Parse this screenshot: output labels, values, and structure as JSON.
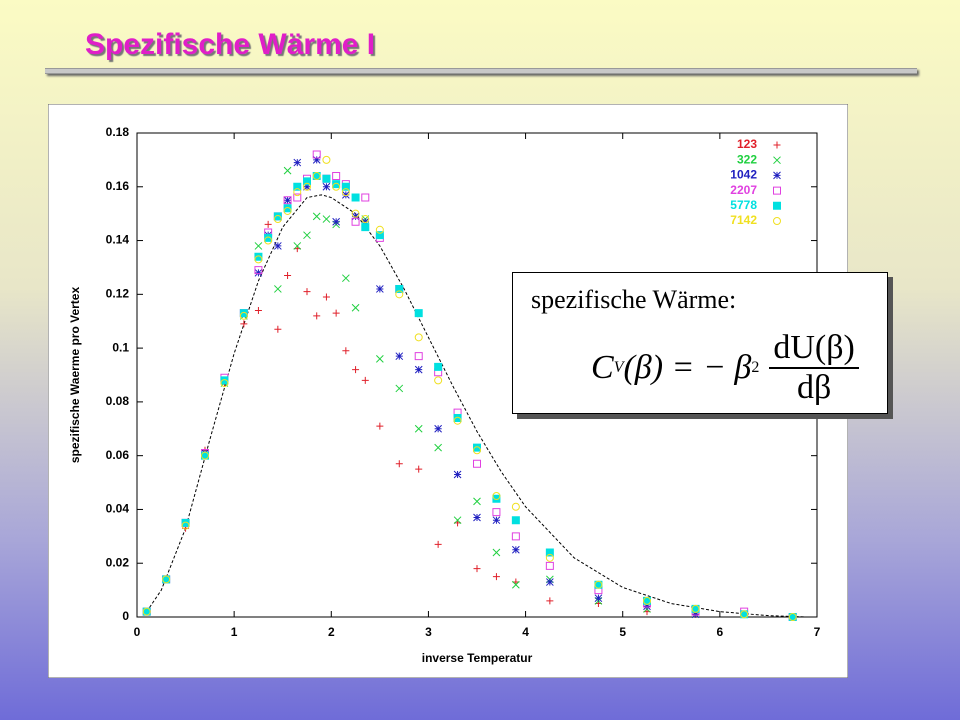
{
  "slide": {
    "title": "Spezifische Wärme I",
    "textbox": {
      "label": "spezifische Wärme:",
      "formula": {
        "lhs": "C",
        "lhs_sub": "V",
        "lhs_arg": "(β) = − β",
        "power": "2",
        "numerator": "dU(β)",
        "denominator": "dβ"
      }
    }
  },
  "chart_data": {
    "type": "scatter",
    "x_label": "inverse Temperatur",
    "y_label": "spezifische Waerme pro Vertex",
    "xlim": [
      0,
      7
    ],
    "xticks": [
      0,
      1,
      2,
      3,
      4,
      5,
      6,
      7
    ],
    "ylim": [
      0,
      0.18
    ],
    "yticks": [
      0,
      0.02,
      0.04,
      0.06,
      0.08,
      0.1,
      0.12,
      0.14,
      0.16,
      0.18
    ],
    "legend": "top-right",
    "x": [
      0.1,
      0.3,
      0.5,
      0.7,
      0.9,
      1.1,
      1.25,
      1.35,
      1.45,
      1.55,
      1.65,
      1.75,
      1.85,
      1.95,
      2.05,
      2.15,
      2.25,
      2.35,
      2.5,
      2.7,
      2.9,
      3.1,
      3.3,
      3.5,
      3.7,
      3.9,
      4.25,
      4.75,
      5.25,
      5.75,
      6.25,
      6.75
    ],
    "series": [
      {
        "name": "123",
        "color": "#e0202a",
        "marker": "plus",
        "values": [
          0.002,
          0.014,
          0.033,
          0.062,
          0.087,
          0.109,
          0.114,
          0.146,
          0.107,
          0.127,
          0.137,
          0.121,
          0.112,
          0.119,
          0.113,
          0.099,
          0.092,
          0.088,
          0.071,
          0.057,
          0.055,
          0.027,
          0.035,
          0.018,
          0.015,
          0.013,
          0.006,
          0.005,
          0.002,
          0.001,
          0.001,
          0
        ]
      },
      {
        "name": "322",
        "color": "#20d040",
        "marker": "cross",
        "values": [
          0.002,
          0.014,
          0.035,
          0.061,
          0.087,
          0.112,
          0.138,
          0.141,
          0.122,
          0.166,
          0.138,
          0.142,
          0.149,
          0.148,
          0.146,
          0.126,
          0.115,
          0.148,
          0.096,
          0.085,
          0.07,
          0.063,
          0.036,
          0.043,
          0.024,
          0.012,
          0.014,
          0.006,
          0.003,
          0.001,
          0.001,
          0
        ]
      },
      {
        "name": "1042",
        "color": "#2020c0",
        "marker": "star",
        "values": [
          0.002,
          0.014,
          0.035,
          0.061,
          0.088,
          0.113,
          0.128,
          0.142,
          0.138,
          0.155,
          0.169,
          0.16,
          0.17,
          0.16,
          0.147,
          0.157,
          0.149,
          0.147,
          0.122,
          0.097,
          0.092,
          0.07,
          0.053,
          0.037,
          0.036,
          0.025,
          0.013,
          0.007,
          0.004,
          0.001,
          0.001,
          0
        ]
      },
      {
        "name": "2207",
        "color": "#e040e0",
        "marker": "square-open",
        "values": [
          0.002,
          0.014,
          0.035,
          0.061,
          0.089,
          0.113,
          0.129,
          0.143,
          0.149,
          0.155,
          0.156,
          0.163,
          0.172,
          0.163,
          0.164,
          0.161,
          0.147,
          0.156,
          0.141,
          0.122,
          0.097,
          0.091,
          0.076,
          0.057,
          0.039,
          0.03,
          0.019,
          0.01,
          0.005,
          0.002,
          0.002,
          0
        ]
      },
      {
        "name": "5778",
        "color": "#00e0e0",
        "marker": "square",
        "values": [
          0.002,
          0.014,
          0.035,
          0.06,
          0.088,
          0.113,
          0.134,
          0.141,
          0.149,
          0.152,
          0.16,
          0.162,
          0.164,
          0.163,
          0.161,
          0.16,
          0.156,
          0.145,
          0.142,
          0.122,
          0.113,
          0.093,
          0.074,
          0.063,
          0.044,
          0.036,
          0.024,
          0.012,
          0.006,
          0.003,
          0.001,
          0
        ]
      },
      {
        "name": "7142",
        "color": "#f0e020",
        "marker": "circle-open",
        "values": [
          0.002,
          0.014,
          0.034,
          0.06,
          0.087,
          0.112,
          0.133,
          0.14,
          0.148,
          0.151,
          0.158,
          0.16,
          0.164,
          0.17,
          0.16,
          0.158,
          0.15,
          0.148,
          0.144,
          0.12,
          0.104,
          0.088,
          0.073,
          0.062,
          0.045,
          0.041,
          0.022,
          0.012,
          0.006,
          0.003,
          0.001,
          0
        ]
      }
    ],
    "curve": {
      "color": "#000000",
      "dashed": true,
      "x": [
        0.1,
        0.25,
        0.5,
        0.75,
        1.0,
        1.25,
        1.5,
        1.75,
        1.9,
        2.0,
        2.25,
        2.5,
        2.75,
        3.0,
        3.25,
        3.5,
        3.75,
        4.0,
        4.5,
        5.0,
        5.5,
        6.0,
        6.5,
        6.9
      ],
      "values": [
        0.002,
        0.01,
        0.033,
        0.066,
        0.098,
        0.125,
        0.145,
        0.156,
        0.157,
        0.156,
        0.15,
        0.138,
        0.122,
        0.104,
        0.086,
        0.069,
        0.054,
        0.041,
        0.022,
        0.011,
        0.005,
        0.002,
        0.0005,
        0
      ]
    }
  }
}
